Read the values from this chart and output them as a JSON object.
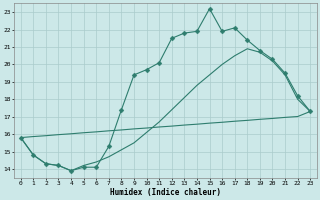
{
  "xlabel": "Humidex (Indice chaleur)",
  "xlim": [
    -0.5,
    23.5
  ],
  "ylim": [
    13.5,
    23.5
  ],
  "xticks": [
    0,
    1,
    2,
    3,
    4,
    5,
    6,
    7,
    8,
    9,
    10,
    11,
    12,
    13,
    14,
    15,
    16,
    17,
    18,
    19,
    20,
    21,
    22,
    23
  ],
  "yticks": [
    14,
    15,
    16,
    17,
    18,
    19,
    20,
    21,
    22,
    23
  ],
  "bg_color": "#cce8e8",
  "grid_color": "#aacccc",
  "line_color": "#2e7d6e",
  "line1_x": [
    0,
    1,
    2,
    3,
    4,
    5,
    6,
    7,
    8,
    9,
    10,
    11,
    12,
    13,
    14,
    15,
    16,
    17,
    18,
    19,
    20,
    21,
    22,
    23
  ],
  "line1_y": [
    15.8,
    14.8,
    14.3,
    14.2,
    13.9,
    14.1,
    14.1,
    15.3,
    17.4,
    19.4,
    19.7,
    20.1,
    21.5,
    21.8,
    21.9,
    23.2,
    21.9,
    22.1,
    21.4,
    20.8,
    20.3,
    19.5,
    18.2,
    17.3
  ],
  "line2_x": [
    0,
    1,
    2,
    3,
    4,
    5,
    6,
    7,
    8,
    9,
    10,
    11,
    12,
    13,
    14,
    15,
    16,
    17,
    18,
    19,
    20,
    21,
    22,
    23
  ],
  "line2_y": [
    15.8,
    14.8,
    14.3,
    14.2,
    13.9,
    14.2,
    14.4,
    14.7,
    15.1,
    15.5,
    16.1,
    16.7,
    17.4,
    18.1,
    18.8,
    19.4,
    20.0,
    20.5,
    20.9,
    20.7,
    20.2,
    19.4,
    18.0,
    17.3
  ],
  "line3_x": [
    0,
    1,
    2,
    3,
    4,
    5,
    6,
    7,
    8,
    9,
    10,
    11,
    12,
    13,
    14,
    15,
    16,
    17,
    18,
    19,
    20,
    21,
    22,
    23
  ],
  "line3_y": [
    15.8,
    15.86,
    15.91,
    15.97,
    16.02,
    16.08,
    16.13,
    16.19,
    16.24,
    16.3,
    16.35,
    16.41,
    16.46,
    16.52,
    16.57,
    16.63,
    16.68,
    16.74,
    16.79,
    16.85,
    16.9,
    16.96,
    17.01,
    17.3
  ],
  "markersize": 2.5
}
